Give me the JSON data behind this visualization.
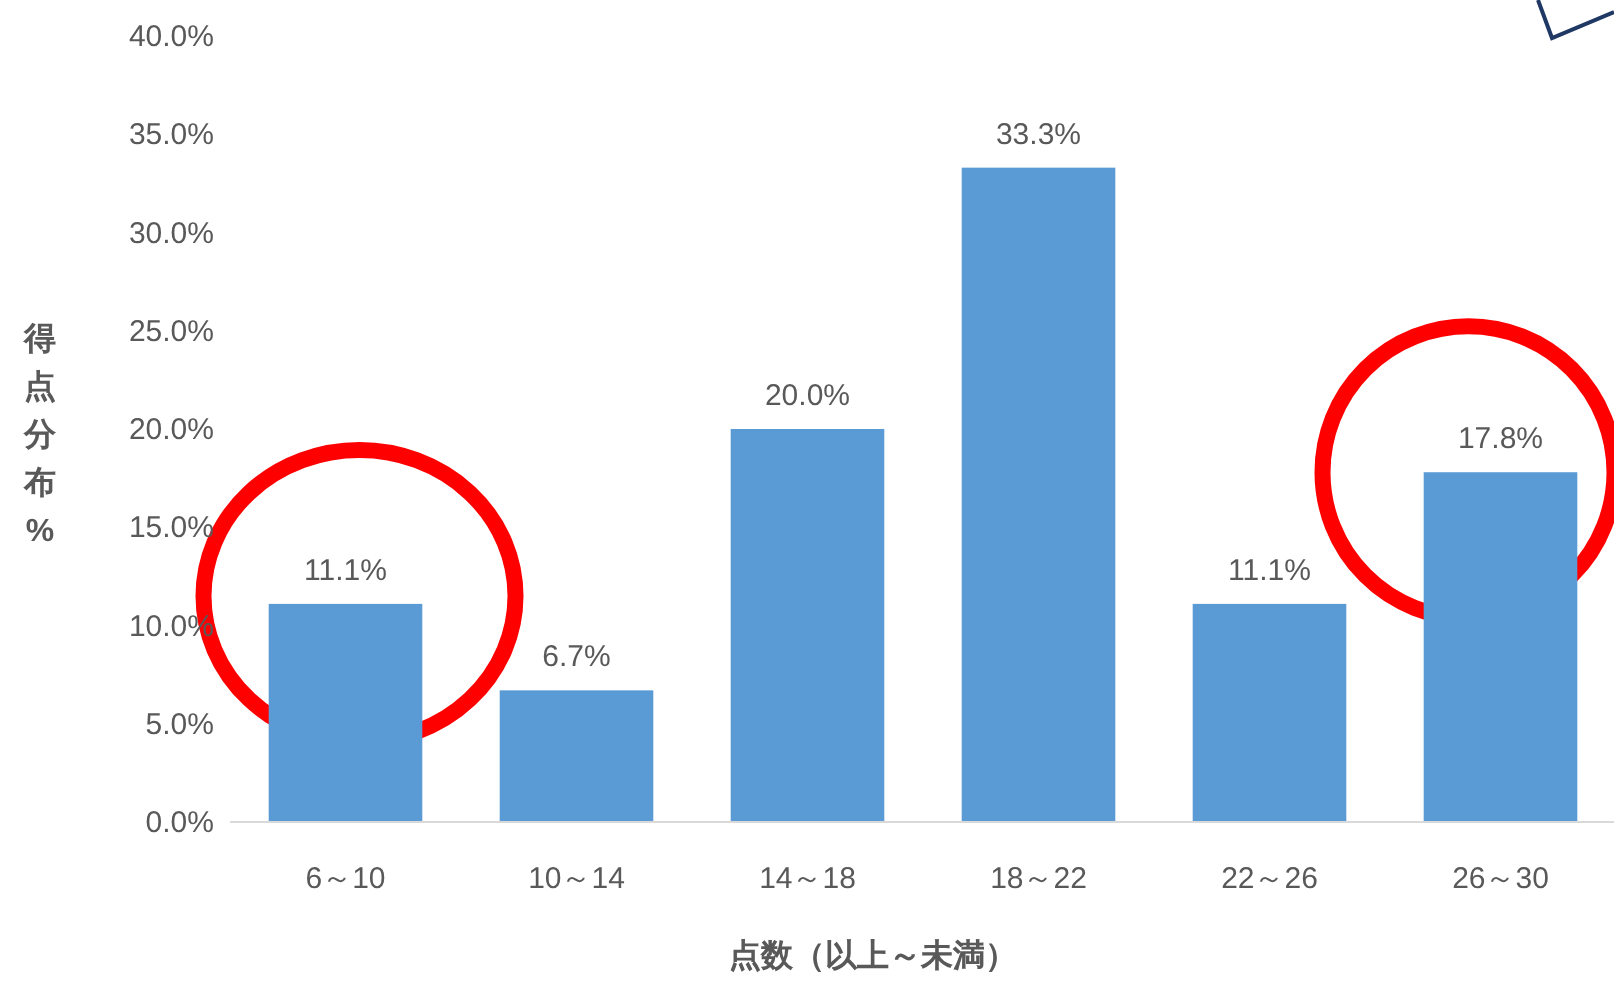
{
  "chart_data": {
    "type": "bar",
    "xlabel": "点数（以上～未満）",
    "ylabel": "得点分布%",
    "categories": [
      "6～10",
      "10～14",
      "14～18",
      "18～22",
      "22～26",
      "26～30"
    ],
    "values": [
      11.1,
      6.7,
      20.0,
      33.3,
      11.1,
      17.8
    ],
    "value_labels": [
      "11.1%",
      "6.7%",
      "20.0%",
      "33.3%",
      "11.1%",
      "17.8%"
    ],
    "color": "#5b9bd5",
    "ylim": [
      0,
      40
    ],
    "yticks": [
      {
        "value": 0,
        "label": "0.0%"
      },
      {
        "value": 5,
        "label": "5.0%"
      },
      {
        "value": 10,
        "label": "10.0%"
      },
      {
        "value": 15,
        "label": "15.0%"
      },
      {
        "value": 20,
        "label": "20.0%"
      },
      {
        "value": 25,
        "label": "25.0%"
      },
      {
        "value": 30,
        "label": "30.0%"
      },
      {
        "value": 35,
        "label": "35.0%"
      },
      {
        "value": 40,
        "label": "40.0%"
      }
    ],
    "grid": false
  }
}
